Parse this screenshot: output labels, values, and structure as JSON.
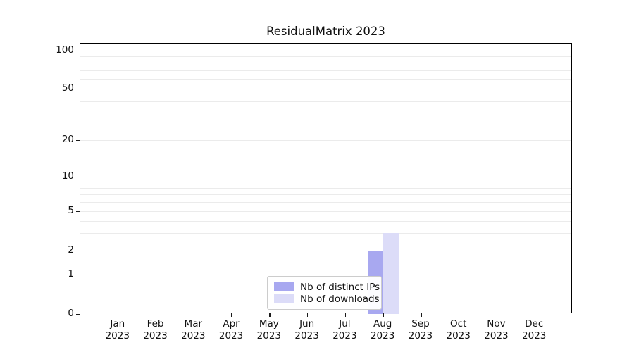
{
  "title": "ResidualMatrix 2023",
  "chart_data": {
    "type": "bar",
    "title": "ResidualMatrix 2023",
    "categories": [
      "Jan 2023",
      "Feb 2023",
      "Mar 2023",
      "Apr 2023",
      "May 2023",
      "Jun 2023",
      "Jul 2023",
      "Aug 2023",
      "Sep 2023",
      "Oct 2023",
      "Nov 2023",
      "Dec 2023"
    ],
    "series": [
      {
        "name": "Nb of distinct IPs",
        "color": "#a8a8f0",
        "values": [
          0,
          0,
          0,
          0,
          0,
          0,
          0,
          2,
          0,
          0,
          0,
          0
        ]
      },
      {
        "name": "Nb of downloads",
        "color": "#dcdcf8",
        "values": [
          0,
          0,
          0,
          0,
          0,
          0,
          0,
          3,
          0,
          0,
          0,
          0
        ]
      }
    ],
    "yscale": "symlog",
    "y_ticks": [
      0,
      1,
      2,
      5,
      10,
      20,
      50,
      100
    ],
    "ylim": [
      0,
      114
    ],
    "xlabel": "",
    "ylabel": "",
    "grid": true,
    "legend_position": "lower center"
  },
  "colors": {
    "bar_distinct_ips": "#a8a8f0",
    "bar_downloads": "#dcdcf8",
    "grid_major": "#c3c3c3",
    "grid_minor": "#ebebeb",
    "spine": "#000000"
  }
}
